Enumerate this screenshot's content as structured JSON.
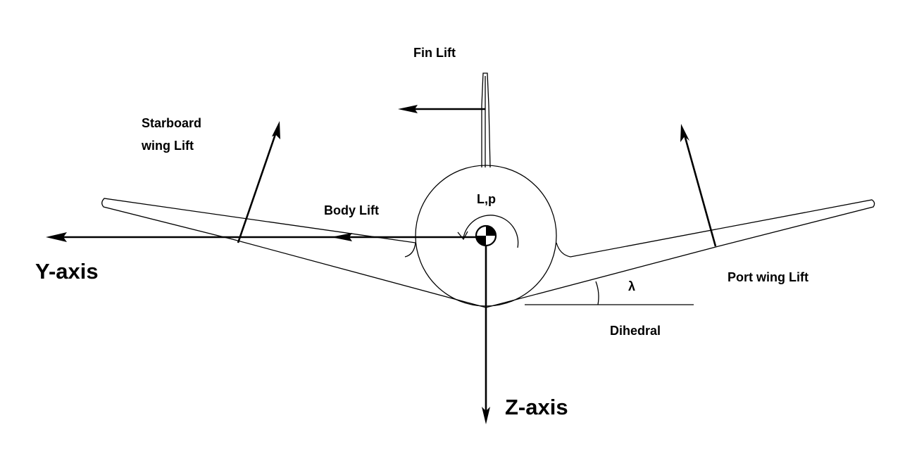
{
  "diagram": {
    "fin_lift": "Fin Lift",
    "starboard_wing_lift": [
      "Starboard",
      "wing Lift"
    ],
    "body_lift": "Body Lift",
    "roll_label": "L,p",
    "y_axis": "Y-axis",
    "z_axis": "Z-axis",
    "port_wing_lift": "Port wing Lift",
    "dihedral_symbol": "λ",
    "dihedral": "Dihedral"
  }
}
